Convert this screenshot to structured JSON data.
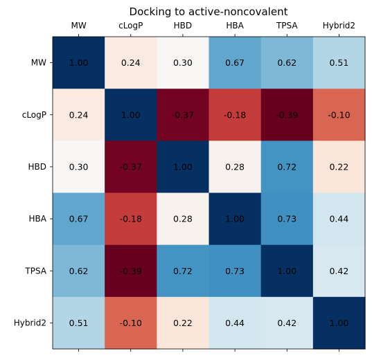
{
  "chart_data": {
    "type": "heatmap",
    "title": "Docking to active-noncovalent",
    "x_labels": [
      "MW",
      "cLogP",
      "HBD",
      "HBA",
      "TPSA",
      "Hybrid2"
    ],
    "y_labels": [
      "MW",
      "cLogP",
      "HBD",
      "HBA",
      "TPSA",
      "Hybrid2"
    ],
    "values": [
      [
        1.0,
        0.24,
        0.3,
        0.67,
        0.62,
        0.51
      ],
      [
        0.24,
        1.0,
        -0.37,
        -0.18,
        -0.39,
        -0.1
      ],
      [
        0.3,
        -0.37,
        1.0,
        0.28,
        0.72,
        0.22
      ],
      [
        0.67,
        -0.18,
        0.28,
        1.0,
        0.73,
        0.44
      ],
      [
        0.62,
        -0.39,
        0.72,
        0.73,
        1.0,
        0.42
      ],
      [
        0.51,
        -0.1,
        0.22,
        0.44,
        0.42,
        1.0
      ]
    ],
    "value_labels": [
      [
        "1.00",
        "0.24",
        "0.30",
        "0.67",
        "0.62",
        "0.51"
      ],
      [
        "0.24",
        "1.00",
        "-0.37",
        "-0.18",
        "-0.39",
        "-0.10"
      ],
      [
        "0.30",
        "-0.37",
        "1.00",
        "0.28",
        "0.72",
        "0.22"
      ],
      [
        "0.67",
        "-0.18",
        "0.28",
        "1.00",
        "0.73",
        "0.44"
      ],
      [
        "0.62",
        "-0.39",
        "0.72",
        "0.73",
        "1.00",
        "0.42"
      ],
      [
        "0.51",
        "-0.10",
        "0.22",
        "0.44",
        "0.42",
        "1.00"
      ]
    ],
    "x_tick_position": "top",
    "colormap": "RdBu",
    "color_range": [
      -0.39,
      1.0
    ],
    "grid": false,
    "legend": "none"
  }
}
